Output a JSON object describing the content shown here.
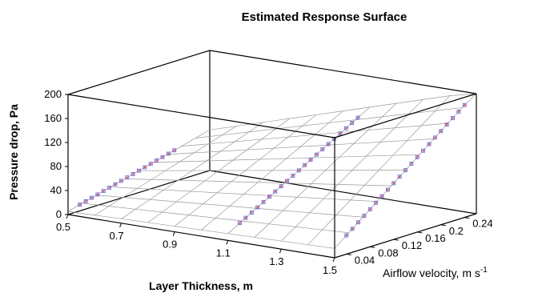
{
  "chart_data": {
    "type": "surface",
    "title": "Estimated Response Surface",
    "xlabel": "Layer Thickness, m",
    "ylabel": "Airflow velocity, m s",
    "ylabel_sup": "-1",
    "zlabel": "Pressure drop, Pa",
    "x_ticks": [
      "0.5",
      "0.7",
      "0.9",
      "1.1",
      "1.3",
      "1.5"
    ],
    "y_ticks": [
      "0.04",
      "0.08",
      "0.12",
      "0.16",
      "0.2",
      "0.24"
    ],
    "z_ticks": [
      "0",
      "40",
      "80",
      "120",
      "160",
      "200"
    ],
    "xlim": [
      0.5,
      1.5
    ],
    "ylim": [
      0.02,
      0.26
    ],
    "zlim": [
      0,
      200
    ],
    "grid": true,
    "surface_model": "z = 520 * x * y",
    "points": [
      {
        "x": 0.5,
        "y": 0.04,
        "z": 8
      },
      {
        "x": 0.5,
        "y": 0.2,
        "z": 50
      },
      {
        "x": 1.1,
        "y": 0.04,
        "z": 22
      },
      {
        "x": 1.1,
        "y": 0.24,
        "z": 135
      },
      {
        "x": 1.5,
        "y": 0.04,
        "z": 30
      },
      {
        "x": 1.5,
        "y": 0.24,
        "z": 185
      }
    ]
  }
}
